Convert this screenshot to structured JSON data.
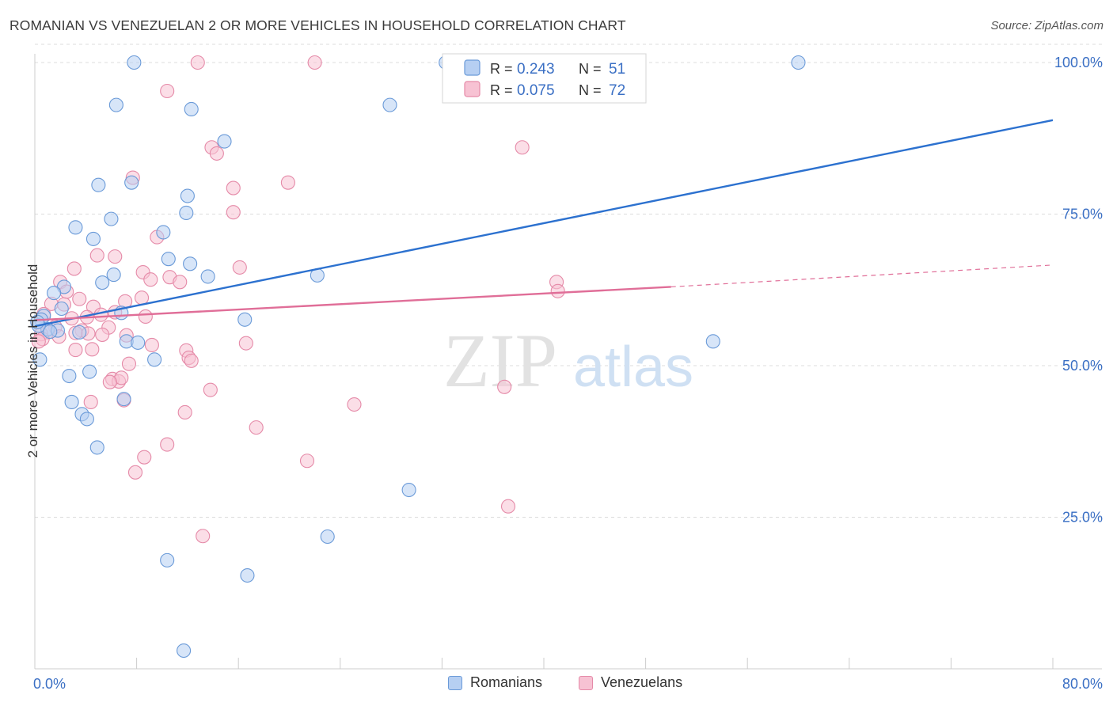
{
  "title": "ROMANIAN VS VENEZUELAN 2 OR MORE VEHICLES IN HOUSEHOLD CORRELATION CHART",
  "source": "Source: ZipAtlas.com",
  "watermark": {
    "zip": "ZIP",
    "atlas": "atlas"
  },
  "colors": {
    "romanians_fill": "#b6cff2",
    "romanians_stroke": "#6a9ad8",
    "romanians_line": "#2c71cf",
    "venezuelans_fill": "#f7c2d3",
    "venezuelans_stroke": "#e58aa8",
    "venezuelans_line": "#e06e98",
    "value_text": "#3a6fc4",
    "grid": "#dcdcdc"
  },
  "legend_top": [
    {
      "r_label": "R = ",
      "r_value": "0.243",
      "n_label": "N = ",
      "n_value": "51"
    },
    {
      "r_label": "R = ",
      "r_value": "0.075",
      "n_label": "N = ",
      "n_value": "72"
    }
  ],
  "legend_bottom": [
    "Romanians",
    "Venezuelans"
  ],
  "chart_data": {
    "type": "scatter",
    "title": "ROMANIAN VS VENEZUELAN 2 OR MORE VEHICLES IN HOUSEHOLD CORRELATION CHART",
    "xlabel": "",
    "ylabel": "2 or more Vehicles in Household",
    "xlim": [
      0,
      80
    ],
    "ylim": [
      0,
      103
    ],
    "x_tick_labels": [
      "0.0%",
      "80.0%"
    ],
    "y_ticks": [
      25,
      50,
      75,
      100
    ],
    "y_tick_labels": [
      "25.0%",
      "50.0%",
      "75.0%",
      "100.0%"
    ],
    "grid": true,
    "series": [
      {
        "name": "Romanians",
        "points": [
          [
            7.8,
            100
          ],
          [
            32.3,
            100
          ],
          [
            60,
            100
          ],
          [
            6.4,
            93
          ],
          [
            12.3,
            92.3
          ],
          [
            27.9,
            93
          ],
          [
            14.9,
            87
          ],
          [
            5.0,
            79.8
          ],
          [
            7.6,
            80.2
          ],
          [
            12.0,
            78
          ],
          [
            6.0,
            74.2
          ],
          [
            11.9,
            75.2
          ],
          [
            3.2,
            72.8
          ],
          [
            4.6,
            70.9
          ],
          [
            10.1,
            72
          ],
          [
            10.5,
            67.6
          ],
          [
            12.2,
            66.8
          ],
          [
            6.2,
            65
          ],
          [
            5.3,
            63.7
          ],
          [
            13.6,
            64.7
          ],
          [
            22.2,
            64.9
          ],
          [
            2.3,
            63
          ],
          [
            1.5,
            62
          ],
          [
            2.1,
            59.4
          ],
          [
            6.8,
            58.7
          ],
          [
            0.7,
            58.2
          ],
          [
            0.5,
            57.6
          ],
          [
            16.5,
            57.6
          ],
          [
            1.0,
            56
          ],
          [
            1.8,
            55.8
          ],
          [
            3.5,
            55.5
          ],
          [
            7.2,
            54
          ],
          [
            8.1,
            53.8
          ],
          [
            9.4,
            51
          ],
          [
            0.4,
            51
          ],
          [
            4.3,
            49
          ],
          [
            2.7,
            48.3
          ],
          [
            53.3,
            54
          ],
          [
            2.9,
            44
          ],
          [
            7.0,
            44.5
          ],
          [
            3.7,
            42
          ],
          [
            4.1,
            41.2
          ],
          [
            4.9,
            36.5
          ],
          [
            29.4,
            29.5
          ],
          [
            23,
            21.8
          ],
          [
            10.4,
            17.9
          ],
          [
            16.7,
            15.4
          ],
          [
            11.7,
            3
          ],
          [
            0.3,
            56.6
          ],
          [
            0.2,
            57.2
          ],
          [
            1.2,
            55.6
          ]
        ],
        "trend": {
          "x0": 0,
          "y0": 56.5,
          "x1": 80,
          "y1": 90.5
        }
      },
      {
        "name": "Venezuelans",
        "points": [
          [
            12.8,
            100
          ],
          [
            22,
            100
          ],
          [
            10.4,
            95.3
          ],
          [
            13.9,
            86
          ],
          [
            14.3,
            85
          ],
          [
            38.3,
            86
          ],
          [
            7.7,
            81
          ],
          [
            19.9,
            80.2
          ],
          [
            15.6,
            79.3
          ],
          [
            15.6,
            75.3
          ],
          [
            9.6,
            71.2
          ],
          [
            4.9,
            68.2
          ],
          [
            6.3,
            68
          ],
          [
            16.1,
            66.2
          ],
          [
            3.1,
            66
          ],
          [
            8.5,
            65.4
          ],
          [
            10.6,
            64.6
          ],
          [
            9.1,
            64.2
          ],
          [
            11.4,
            63.8
          ],
          [
            2.0,
            63.8
          ],
          [
            41,
            63.8
          ],
          [
            41.1,
            62.3
          ],
          [
            2.5,
            62.2
          ],
          [
            8.4,
            61.2
          ],
          [
            3.5,
            61
          ],
          [
            7.1,
            60.6
          ],
          [
            1.3,
            60.2
          ],
          [
            2.3,
            60.1
          ],
          [
            4.6,
            59.7
          ],
          [
            5.2,
            58.4
          ],
          [
            6.3,
            58.8
          ],
          [
            4.1,
            58
          ],
          [
            0.7,
            58.5
          ],
          [
            8.7,
            58.1
          ],
          [
            2.9,
            57.8
          ],
          [
            5.8,
            56.3
          ],
          [
            1.6,
            56.4
          ],
          [
            3.7,
            55.8
          ],
          [
            1.0,
            55.5
          ],
          [
            5.3,
            55.1
          ],
          [
            7.2,
            55
          ],
          [
            3.2,
            55.4
          ],
          [
            4.2,
            55.3
          ],
          [
            0.5,
            55.2
          ],
          [
            1.9,
            54.8
          ],
          [
            16.6,
            53.7
          ],
          [
            9.2,
            53.4
          ],
          [
            4.5,
            52.7
          ],
          [
            11.9,
            52.5
          ],
          [
            3.2,
            52.6
          ],
          [
            12.1,
            51.3
          ],
          [
            12.3,
            50.8
          ],
          [
            7.4,
            50.3
          ],
          [
            6.1,
            47.8
          ],
          [
            6.6,
            47.4
          ],
          [
            6.8,
            48
          ],
          [
            5.9,
            47.3
          ],
          [
            13.8,
            46
          ],
          [
            36.9,
            46.5
          ],
          [
            4.4,
            44
          ],
          [
            7.0,
            44.3
          ],
          [
            25.1,
            43.6
          ],
          [
            11.8,
            42.3
          ],
          [
            17.4,
            39.8
          ],
          [
            10.4,
            37
          ],
          [
            8.6,
            34.9
          ],
          [
            21.4,
            34.3
          ],
          [
            7.9,
            32.4
          ],
          [
            37.2,
            26.8
          ],
          [
            13.2,
            21.9
          ],
          [
            0.6,
            54.4
          ],
          [
            0.3,
            54.0
          ]
        ],
        "trend": {
          "x0": 0,
          "y0": 57.5,
          "x1": 50,
          "y1": 63.0
        },
        "trend_dashed": {
          "x0": 50,
          "y0": 63.0,
          "x1": 80,
          "y1": 66.6
        }
      }
    ]
  }
}
